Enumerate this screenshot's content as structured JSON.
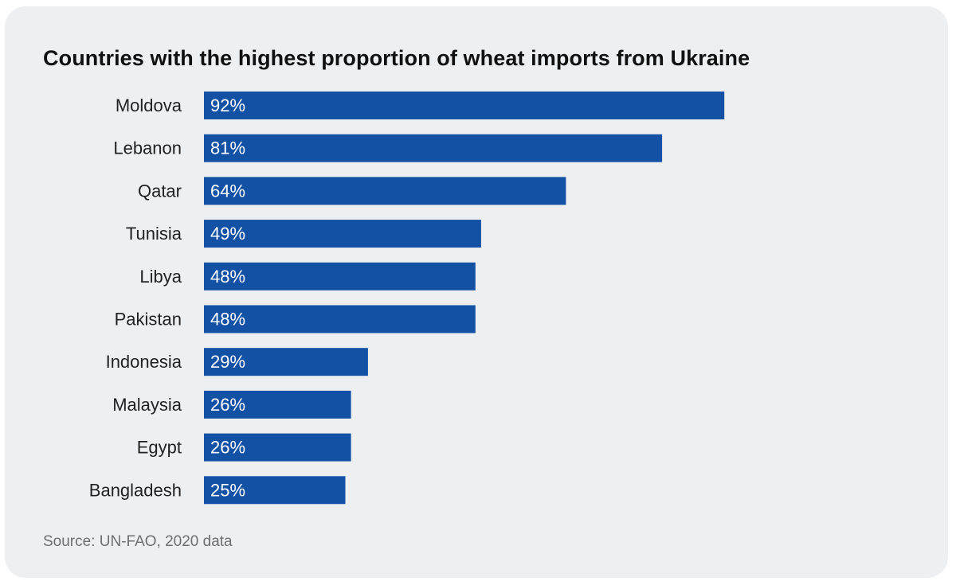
{
  "colors": {
    "bar": "#1351a5",
    "background": "#eeeff0",
    "label": "#222222",
    "value_label": "#ffffff"
  },
  "chart_data": {
    "type": "bar",
    "orientation": "horizontal",
    "title": "Countries with the highest proportion of wheat imports from Ukraine",
    "categories": [
      "Moldova",
      "Lebanon",
      "Qatar",
      "Tunisia",
      "Libya",
      "Pakistan",
      "Indonesia",
      "Malaysia",
      "Egypt",
      "Bangladesh"
    ],
    "values": [
      92,
      81,
      64,
      49,
      48,
      48,
      29,
      26,
      26,
      25
    ],
    "value_labels": [
      "92%",
      "81%",
      "64%",
      "49%",
      "48%",
      "48%",
      "29%",
      "26%",
      "26%",
      "25%"
    ],
    "xlim": [
      0,
      100
    ],
    "grid": false,
    "legend": "none"
  },
  "source": "Source: UN-FAO, 2020 data"
}
